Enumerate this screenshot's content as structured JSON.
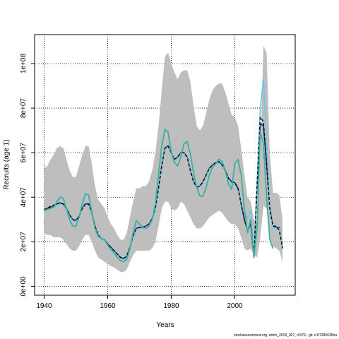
{
  "chart_data": {
    "type": "line",
    "xlabel": "Years",
    "ylabel": "Recruits (age 1)",
    "xlim": [
      1937,
      2019
    ],
    "ylim": [
      -4000000,
      113000000
    ],
    "xticks": [
      1940,
      1960,
      1980,
      2000
    ],
    "yticks": [
      0,
      20000000,
      40000000,
      60000000,
      80000000,
      100000000
    ],
    "ytick_labels": [
      "0e+00",
      "2e+07",
      "4e+07",
      "6e+07",
      "8e+07",
      "1e+08"
    ],
    "grid": true,
    "band_color": "#bebebe",
    "band": {
      "x": [
        1940,
        1941,
        1942,
        1943,
        1944,
        1945,
        1946,
        1947,
        1948,
        1949,
        1950,
        1951,
        1952,
        1953,
        1954,
        1955,
        1956,
        1957,
        1958,
        1959,
        1960,
        1961,
        1962,
        1963,
        1964,
        1965,
        1966,
        1967,
        1968,
        1969,
        1970,
        1971,
        1972,
        1973,
        1974,
        1975,
        1976,
        1977,
        1978,
        1979,
        1980,
        1981,
        1982,
        1983,
        1984,
        1985,
        1986,
        1987,
        1988,
        1989,
        1990,
        1991,
        1992,
        1993,
        1994,
        1995,
        1996,
        1997,
        1998,
        1999,
        2000,
        2001,
        2002,
        2003,
        2004,
        2005,
        2006,
        2007,
        2008,
        2009,
        2010,
        2011,
        2012,
        2013,
        2014,
        2015
      ],
      "upper": [
        53000000,
        54000000,
        57000000,
        59000000,
        62000000,
        63000000,
        62000000,
        57000000,
        52000000,
        49000000,
        49000000,
        54000000,
        59000000,
        63000000,
        63000000,
        55000000,
        45000000,
        39000000,
        37000000,
        35000000,
        31000000,
        28000000,
        26000000,
        23000000,
        21000000,
        21000000,
        24000000,
        31000000,
        38000000,
        44000000,
        44000000,
        45000000,
        45000000,
        47000000,
        52000000,
        60000000,
        72000000,
        88000000,
        103000000,
        105000000,
        100000000,
        96000000,
        93000000,
        96000000,
        97000000,
        97000000,
        92000000,
        81000000,
        72000000,
        70000000,
        72000000,
        78000000,
        84000000,
        88000000,
        90000000,
        91000000,
        91000000,
        87000000,
        82000000,
        77000000,
        76000000,
        72000000,
        62000000,
        50000000,
        40000000,
        38000000,
        30000000,
        28000000,
        58000000,
        108000000,
        105000000,
        60000000,
        42000000,
        42000000,
        41000000,
        30000000
      ],
      "lower": [
        24000000,
        23000000,
        23000000,
        22000000,
        22000000,
        22000000,
        21000000,
        19000000,
        17000000,
        16000000,
        16000000,
        18000000,
        21000000,
        23000000,
        23000000,
        20000000,
        16000000,
        13000000,
        12000000,
        11000000,
        10000000,
        9000000,
        8500000,
        7500000,
        6500000,
        6300000,
        7500000,
        11000000,
        14000000,
        16000000,
        16000000,
        16000000,
        16000000,
        16000000,
        17000000,
        20000000,
        27000000,
        35000000,
        38000000,
        38000000,
        35000000,
        34000000,
        35000000,
        38000000,
        37000000,
        34000000,
        31000000,
        28000000,
        26000000,
        26000000,
        27000000,
        29000000,
        31000000,
        32000000,
        33000000,
        34000000,
        33000000,
        31000000,
        29000000,
        28000000,
        28000000,
        26000000,
        22000000,
        17000000,
        16000000,
        17000000,
        14000000,
        13000000,
        22000000,
        36000000,
        35000000,
        22000000,
        18000000,
        17000000,
        16000000,
        11000000
      ]
    },
    "series": [
      {
        "color": "#26267e",
        "width": 1.6,
        "dash": "",
        "x": [
          1940,
          1941,
          1942,
          1943,
          1944,
          1945,
          1946,
          1947,
          1948,
          1949,
          1950,
          1951,
          1952,
          1953,
          1954,
          1955,
          1956,
          1957,
          1958,
          1959,
          1960,
          1961,
          1962,
          1963,
          1964,
          1965,
          1966,
          1967,
          1968,
          1969,
          1970,
          1971,
          1972,
          1973,
          1974,
          1975,
          1976,
          1977,
          1978,
          1979,
          1980,
          1981,
          1982,
          1983,
          1984,
          1985,
          1986,
          1987,
          1988,
          1989,
          1990,
          1991,
          1992,
          1993,
          1994,
          1995,
          1996,
          1997,
          1998,
          1999,
          2000,
          2001,
          2002,
          2003,
          2004,
          2005,
          2006,
          2007,
          2008,
          2009,
          2010,
          2011,
          2012,
          2013,
          2014,
          2015
        ],
        "y": [
          34500000,
          35000000,
          35500000,
          36000000,
          37000000,
          37500000,
          37000000,
          35000000,
          32000000,
          30000000,
          29500000,
          31500000,
          35000000,
          37000000,
          37000000,
          33000000,
          27000000,
          23000000,
          21500000,
          21000000,
          19000000,
          17500000,
          16000000,
          14500000,
          13000000,
          12500000,
          13500000,
          17500000,
          22500000,
          26000000,
          26500000,
          26500000,
          27000000,
          28000000,
          30500000,
          35000000,
          44000000,
          54000000,
          62000000,
          63000000,
          60000000,
          57000000,
          58000000,
          60000000,
          60000000,
          58000000,
          52000000,
          47000000,
          44500000,
          45000000,
          47000000,
          50000000,
          53000000,
          54500000,
          55500000,
          56000000,
          54500000,
          52000000,
          48500000,
          47000000,
          46500000,
          44000000,
          37000000,
          30000000,
          25000000,
          28000000,
          13000000,
          45000000,
          73000000,
          72000000,
          55000000,
          35000000,
          27000000,
          26500000,
          26500000,
          17500000
        ]
      },
      {
        "color": "#6fc4e6",
        "width": 1.6,
        "dash": "",
        "x": [
          1940,
          1941,
          1942,
          1943,
          1944,
          1945,
          1946,
          1947,
          1948,
          1949,
          1950,
          1951,
          1952,
          1953,
          1954,
          1955,
          1956,
          1957,
          1958,
          1959,
          1960,
          1961,
          1962,
          1963,
          1964,
          1965,
          1966,
          1967,
          1968,
          1969,
          1970,
          1971,
          1972,
          1973,
          1974,
          1975,
          1976,
          1977,
          1978,
          1979,
          1980,
          1981,
          1982,
          1983,
          1984,
          1985,
          1986,
          1987,
          1988,
          1989,
          1990,
          1991,
          1992,
          1993,
          1994,
          1995,
          1996,
          1997,
          1998,
          1999,
          2000,
          2001,
          2002,
          2003,
          2004,
          2005,
          2006,
          2007,
          2008,
          2009,
          2010,
          2011,
          2012,
          2013,
          2014,
          2015
        ],
        "y": [
          34000000,
          34500000,
          35000000,
          35500000,
          36500000,
          37000000,
          36500000,
          34500000,
          31500000,
          29500000,
          29000000,
          31000000,
          34500000,
          36500000,
          36500000,
          32500000,
          26500000,
          22500000,
          21000000,
          20500000,
          18500000,
          17000000,
          15500000,
          14000000,
          12500000,
          12000000,
          13000000,
          17000000,
          22000000,
          25500000,
          26000000,
          26000000,
          26500000,
          27500000,
          30000000,
          34500000,
          43500000,
          53500000,
          61500000,
          62500000,
          59500000,
          56500000,
          57500000,
          59500000,
          59500000,
          57500000,
          51500000,
          46500000,
          44000000,
          44500000,
          46500000,
          49500000,
          52500000,
          54000000,
          55000000,
          55500000,
          54000000,
          51500000,
          48000000,
          46000000,
          45500000,
          43000000,
          38000000,
          32000000,
          31000000,
          34000000,
          14000000,
          48000000,
          80000000,
          93000000,
          65000000,
          34000000,
          26500000,
          26000000,
          26000000,
          18000000
        ]
      },
      {
        "color": "#000000",
        "width": 1.4,
        "dash": "4,3",
        "x": [
          1940,
          1941,
          1942,
          1943,
          1944,
          1945,
          1946,
          1947,
          1948,
          1949,
          1950,
          1951,
          1952,
          1953,
          1954,
          1955,
          1956,
          1957,
          1958,
          1959,
          1960,
          1961,
          1962,
          1963,
          1964,
          1965,
          1966,
          1967,
          1968,
          1969,
          1970,
          1971,
          1972,
          1973,
          1974,
          1975,
          1976,
          1977,
          1978,
          1979,
          1980,
          1981,
          1982,
          1983,
          1984,
          1985,
          1986,
          1987,
          1988,
          1989,
          1990,
          1991,
          1992,
          1993,
          1994,
          1995,
          1996,
          1997,
          1998,
          1999,
          2000,
          2001,
          2002,
          2003,
          2004,
          2005,
          2006,
          2007,
          2008,
          2009,
          2010,
          2011,
          2012,
          2013,
          2014,
          2015
        ],
        "y": [
          34000000,
          35000000,
          36000000,
          36500000,
          37000000,
          37500000,
          37000000,
          35000000,
          32000000,
          30000000,
          29500000,
          31500000,
          35000000,
          37000000,
          37000000,
          33000000,
          27000000,
          23000000,
          21500000,
          21000000,
          19000000,
          17500000,
          16000000,
          14500000,
          13000000,
          12500000,
          13500000,
          17500000,
          22500000,
          26000000,
          26500000,
          26500000,
          27000000,
          28000000,
          30500000,
          35000000,
          44000000,
          54000000,
          62000000,
          63000000,
          60000000,
          57000000,
          58000000,
          60000000,
          60000000,
          58000000,
          52000000,
          47000000,
          44500000,
          45000000,
          47000000,
          50000000,
          53000000,
          54500000,
          55500000,
          56000000,
          54500000,
          52000000,
          48500000,
          47000000,
          46500000,
          44000000,
          37000000,
          30000000,
          25000000,
          28000000,
          13000000,
          45000000,
          76000000,
          74000000,
          55000000,
          35000000,
          27000000,
          27000000,
          25000000,
          17000000
        ]
      },
      {
        "color": "#3bb09b",
        "width": 1.8,
        "dash": "",
        "x": [
          1940,
          1941,
          1942,
          1943,
          1944,
          1945,
          1946,
          1947,
          1948,
          1949,
          1950,
          1951,
          1952,
          1953,
          1954,
          1955,
          1956,
          1957,
          1958,
          1959,
          1960,
          1961,
          1962,
          1963,
          1964,
          1965,
          1966,
          1967,
          1968,
          1969,
          1970,
          1971,
          1972,
          1973,
          1974,
          1975,
          1976,
          1977,
          1978,
          1979,
          1980,
          1981,
          1982,
          1983,
          1984,
          1985,
          1986,
          1987,
          1988,
          1989,
          1990,
          1991,
          1992,
          1993,
          1994,
          1995,
          1996,
          1997,
          1998,
          1999,
          2000,
          2001,
          2002,
          2003,
          2004,
          2005,
          2006,
          2007,
          2008,
          2009,
          2010,
          2011,
          2012
        ],
        "y": [
          34000000,
          34500000,
          35000000,
          35500000,
          38000000,
          40000000,
          39500000,
          35000000,
          30000000,
          27000000,
          27000000,
          31000000,
          37000000,
          41500000,
          41000000,
          33500000,
          26000000,
          22500000,
          21500000,
          21000000,
          18500000,
          16500000,
          15000000,
          13000000,
          11500000,
          11000000,
          12000000,
          17000000,
          24000000,
          29500000,
          28000000,
          26500000,
          26000000,
          27000000,
          30000000,
          37000000,
          50000000,
          63000000,
          70500000,
          69000000,
          60500000,
          55500000,
          54000000,
          58000000,
          64000000,
          65000000,
          59500000,
          51000000,
          44500000,
          40500000,
          40500000,
          44500000,
          50000000,
          53500000,
          55000000,
          57000000,
          56000000,
          52000000,
          46000000,
          43500000,
          55000000,
          57000000,
          50000000,
          35000000,
          24000000,
          30000000,
          13000000,
          26000000,
          69000000,
          64000000,
          40000000,
          21000000,
          17000000
        ]
      }
    ]
  },
  "footnote": "stockassessment.org, witch_2018_007, r9379 , git: e1f7285635ba"
}
